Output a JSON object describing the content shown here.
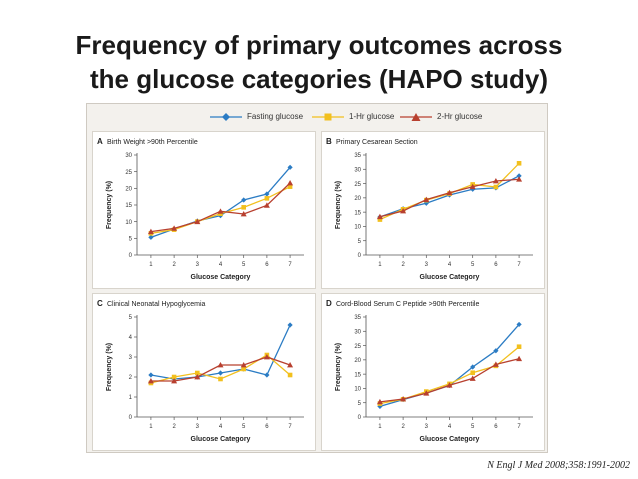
{
  "slide": {
    "title_line1": "Frequency of primary outcomes across",
    "title_line2": "the glucose categories (HAPO study)",
    "citation": "N Engl J Med 2008;358:1991-2002"
  },
  "legend": [
    {
      "name": "Fasting glucose",
      "color": "#2b7cc4",
      "marker": "diamond"
    },
    {
      "name": "1-Hr glucose",
      "color": "#f2c01e",
      "marker": "square"
    },
    {
      "name": "2-Hr glucose",
      "color": "#b8402f",
      "marker": "triangle"
    }
  ],
  "chart_data": [
    {
      "type": "line",
      "panel_letter": "A",
      "title": "Birth Weight >90th Percentile",
      "xlabel": "Glucose Category",
      "ylabel": "Frequency (%)",
      "x": [
        1,
        2,
        3,
        4,
        5,
        6,
        7
      ],
      "ylim": [
        0,
        30
      ],
      "yticks": [
        0,
        5,
        10,
        15,
        20,
        25,
        30
      ],
      "series": [
        {
          "name": "Fasting glucose",
          "color": "#2b7cc4",
          "marker": "diamond",
          "values": [
            5.3,
            7.8,
            10.2,
            11.8,
            16.5,
            18.3,
            26.3
          ]
        },
        {
          "name": "1-Hr glucose",
          "color": "#f2c01e",
          "marker": "square",
          "values": [
            6.5,
            7.6,
            10.0,
            12.4,
            14.3,
            17.0,
            20.5
          ]
        },
        {
          "name": "2-Hr glucose",
          "color": "#b8402f",
          "marker": "triangle",
          "values": [
            7.0,
            8.0,
            10.0,
            13.1,
            12.3,
            14.9,
            21.6
          ]
        }
      ]
    },
    {
      "type": "line",
      "panel_letter": "B",
      "title": "Primary Cesarean Section",
      "xlabel": "Glucose Category",
      "ylabel": "Frequency (%)",
      "x": [
        1,
        2,
        3,
        4,
        5,
        6,
        7
      ],
      "ylim": [
        0,
        35
      ],
      "yticks": [
        0,
        5,
        10,
        15,
        20,
        25,
        30,
        35
      ],
      "series": [
        {
          "name": "Fasting glucose",
          "color": "#2b7cc4",
          "marker": "diamond",
          "values": [
            13.3,
            16.2,
            18.1,
            21.0,
            23.0,
            23.5,
            27.7
          ]
        },
        {
          "name": "1-Hr glucose",
          "color": "#f2c01e",
          "marker": "square",
          "values": [
            12.4,
            16.0,
            19.2,
            21.5,
            24.7,
            23.8,
            32.1
          ]
        },
        {
          "name": "2-Hr glucose",
          "color": "#b8402f",
          "marker": "triangle",
          "values": [
            13.4,
            15.4,
            19.4,
            21.8,
            23.9,
            25.9,
            26.5
          ]
        }
      ]
    },
    {
      "type": "line",
      "panel_letter": "C",
      "title": "Clinical Neonatal Hypoglycemia",
      "xlabel": "Glucose Category",
      "ylabel": "Frequency (%)",
      "x": [
        1,
        2,
        3,
        4,
        5,
        6,
        7
      ],
      "ylim": [
        0,
        5
      ],
      "yticks": [
        0,
        1,
        2,
        3,
        4,
        5
      ],
      "series": [
        {
          "name": "Fasting glucose",
          "color": "#2b7cc4",
          "marker": "diamond",
          "values": [
            2.1,
            1.9,
            2.0,
            2.2,
            2.4,
            2.1,
            4.6
          ]
        },
        {
          "name": "1-Hr glucose",
          "color": "#f2c01e",
          "marker": "square",
          "values": [
            1.7,
            2.0,
            2.2,
            1.9,
            2.4,
            3.1,
            2.1
          ]
        },
        {
          "name": "2-Hr glucose",
          "color": "#b8402f",
          "marker": "triangle",
          "values": [
            1.8,
            1.8,
            2.0,
            2.6,
            2.6,
            3.0,
            2.6
          ]
        }
      ]
    },
    {
      "type": "line",
      "panel_letter": "D",
      "title": "Cord-Blood Serum C Peptide >90th Percentile",
      "xlabel": "Glucose Category",
      "ylabel": "Frequency (%)",
      "x": [
        1,
        2,
        3,
        4,
        5,
        6,
        7
      ],
      "ylim": [
        0,
        35
      ],
      "yticks": [
        0,
        5,
        10,
        15,
        20,
        25,
        30,
        35
      ],
      "series": [
        {
          "name": "Fasting glucose",
          "color": "#2b7cc4",
          "marker": "diamond",
          "values": [
            3.7,
            6.1,
            8.4,
            11.0,
            17.5,
            23.2,
            32.4
          ]
        },
        {
          "name": "1-Hr glucose",
          "color": "#f2c01e",
          "marker": "square",
          "values": [
            4.7,
            6.2,
            8.9,
            11.6,
            15.5,
            17.9,
            24.6
          ]
        },
        {
          "name": "2-Hr glucose",
          "color": "#b8402f",
          "marker": "triangle",
          "values": [
            5.3,
            6.3,
            8.3,
            11.1,
            13.5,
            18.4,
            20.4
          ]
        }
      ]
    }
  ]
}
